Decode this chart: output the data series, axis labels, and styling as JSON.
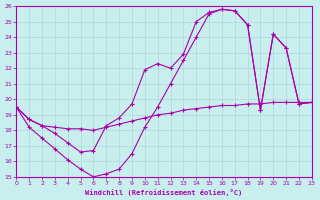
{
  "xlabel": "Windchill (Refroidissement éolien,°C)",
  "xlim": [
    0,
    23
  ],
  "ylim": [
    15,
    26
  ],
  "xticks": [
    0,
    1,
    2,
    3,
    4,
    5,
    6,
    7,
    8,
    9,
    10,
    11,
    12,
    13,
    14,
    15,
    16,
    17,
    18,
    19,
    20,
    21,
    22,
    23
  ],
  "yticks": [
    15,
    16,
    17,
    18,
    19,
    20,
    21,
    22,
    23,
    24,
    25,
    26
  ],
  "bg_color": "#c8eeee",
  "line_color": "#aa00aa",
  "grid_color": "#aadddd",
  "curve1_x": [
    0,
    1,
    2,
    3,
    4,
    5,
    6,
    7,
    8,
    9,
    10,
    11,
    12,
    13,
    14,
    15,
    16,
    17,
    18,
    19,
    20,
    21,
    22,
    23
  ],
  "curve1_y": [
    19.5,
    18.7,
    18.3,
    18.2,
    18.1,
    18.1,
    18.0,
    18.2,
    18.4,
    18.6,
    18.8,
    19.0,
    19.1,
    19.3,
    19.4,
    19.5,
    19.6,
    19.6,
    19.7,
    19.7,
    19.8,
    19.8,
    19.8,
    19.8
  ],
  "curve2_x": [
    0,
    1,
    2,
    3,
    4,
    5,
    6,
    7,
    8,
    9,
    10,
    11,
    12,
    13,
    14,
    15,
    16,
    17,
    18,
    19,
    20,
    21,
    22,
    23
  ],
  "curve2_y": [
    19.5,
    18.7,
    18.3,
    17.8,
    17.2,
    16.6,
    16.7,
    18.3,
    18.8,
    19.7,
    21.9,
    22.3,
    22.0,
    22.9,
    25.0,
    25.6,
    25.8,
    25.7,
    24.8,
    19.3,
    24.2,
    23.3,
    19.7,
    19.8
  ],
  "curve3_x": [
    0,
    1,
    2,
    3,
    4,
    5,
    6,
    7,
    8,
    9,
    10,
    11,
    12,
    13,
    14,
    15,
    16,
    17,
    18,
    19,
    20,
    21,
    22,
    23
  ],
  "curve3_y": [
    19.5,
    18.2,
    17.5,
    16.8,
    16.1,
    15.5,
    15.0,
    15.2,
    15.5,
    16.5,
    18.2,
    19.5,
    21.0,
    22.5,
    24.0,
    25.5,
    25.8,
    25.7,
    24.8,
    19.3,
    24.2,
    23.3,
    19.7,
    19.8
  ]
}
